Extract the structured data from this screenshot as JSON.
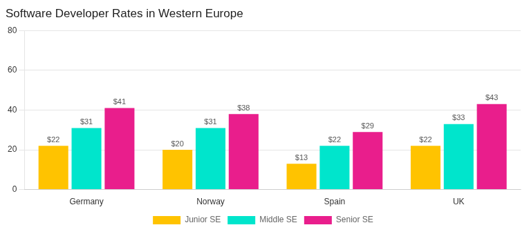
{
  "chart_data": {
    "type": "bar",
    "title": "Software Developer Rates in Western Europe",
    "categories": [
      "Germany",
      "Norway",
      "Spain",
      "UK"
    ],
    "series": [
      {
        "name": "Junior SE",
        "color": "#FFC300",
        "values": [
          22,
          20,
          13,
          22
        ],
        "value_labels": [
          "$22",
          "$20",
          "$13",
          "$22"
        ]
      },
      {
        "name": "Middle SE",
        "color": "#00E5CC",
        "values": [
          31,
          31,
          22,
          33
        ],
        "value_labels": [
          "$31",
          "$31",
          "$22",
          "$33"
        ]
      },
      {
        "name": "Senior SE",
        "color": "#E91E8C",
        "values": [
          41,
          38,
          29,
          43
        ],
        "value_labels": [
          "$41",
          "$38",
          "$29",
          "$43"
        ]
      }
    ],
    "ylim": [
      0,
      80
    ],
    "yticks": [
      0,
      20,
      40,
      60,
      80
    ],
    "grid": true,
    "legend": "bottom",
    "data_labels": true
  }
}
